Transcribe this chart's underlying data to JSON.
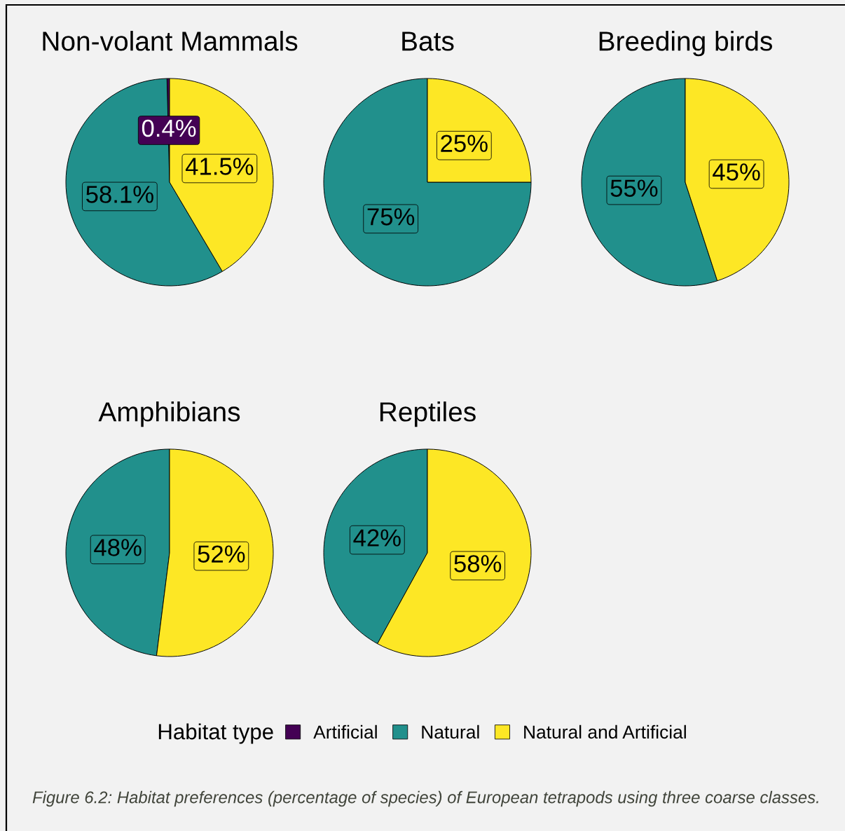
{
  "chart_data": [
    {
      "type": "pie",
      "title": "Non-volant Mammals",
      "categories": [
        "Artificial",
        "Natural",
        "Natural and Artificial"
      ],
      "values": [
        0.4,
        58.1,
        41.5
      ],
      "colors": [
        "#440154",
        "#21908c",
        "#fde725"
      ],
      "value_labels": [
        "0.4%",
        "58.1%",
        "41.5%"
      ],
      "legend": "bottom",
      "legend_title": "Habitat type",
      "annotations": [
        "Figure 6.2: Habitat preferences (percentage of species) of European tetrapods using three coarse classes."
      ]
    },
    {
      "type": "pie",
      "title": "Bats",
      "categories": [
        null,
        null
      ],
      "values": [
        75,
        25
      ],
      "colors": [
        "#21908c",
        "#fde725"
      ],
      "value_labels": [
        "75%",
        "25%"
      ]
    },
    {
      "type": "pie",
      "title": "Breeding birds",
      "categories": [
        null,
        null
      ],
      "values": [
        55,
        45
      ],
      "colors": [
        "#21908c",
        "#fde725"
      ],
      "value_labels": [
        "55%",
        "45%"
      ]
    },
    {
      "type": "pie",
      "title": "Amphibians",
      "categories": [
        null,
        null
      ],
      "values": [
        48,
        52
      ],
      "colors": [
        "#21908c",
        "#fde725"
      ],
      "value_labels": [
        "48%",
        "52%"
      ]
    },
    {
      "type": "pie",
      "title": "Reptiles",
      "categories": [
        null,
        null
      ],
      "values": [
        42,
        58
      ],
      "colors": [
        "#21908c",
        "#fde725"
      ],
      "value_labels": [
        "42%",
        "58%"
      ]
    }
  ]
}
